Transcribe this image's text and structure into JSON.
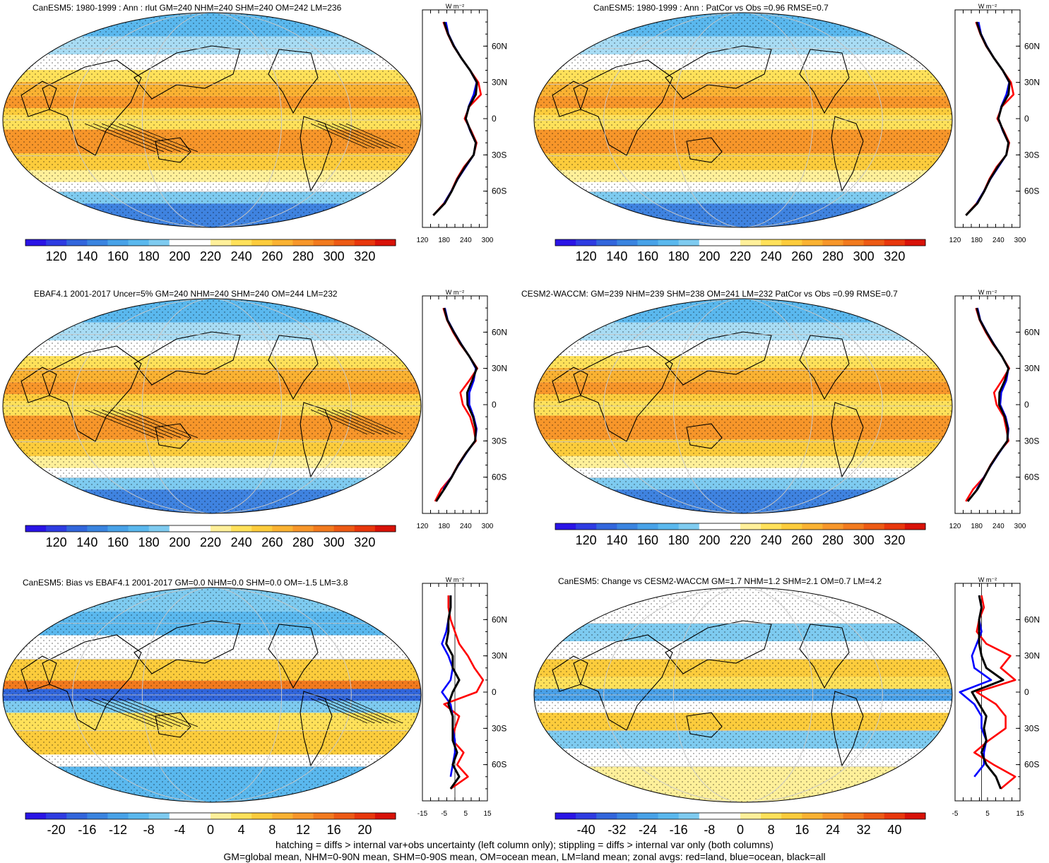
{
  "footer": {
    "line1": "hatching = diffs > internal var+obs uncertainty (left column only); stippling = diffs > internal var only (both columns)",
    "line2": "GM=global mean, NHM=0-90N mean, SHM=0-90S mean, OM=ocean mean, LM=land mean; zonal avgs: red=land, blue=ocean, black=all"
  },
  "zonal_unit": "W m⁻²",
  "lat_ticks": [
    "60N",
    "30N",
    "0",
    "30S",
    "60S"
  ],
  "colors": {
    "land": "#ff0000",
    "ocean": "#0000ff",
    "all": "#000000"
  },
  "panels": [
    {
      "id": "p1",
      "title": "CanESM5: 1980-1999 : Ann : rlut GM=240 NHM=240 SHM=240 OM=242 LM=236",
      "scale": "abs",
      "hatch": true,
      "cb_labels": [
        "120",
        "140",
        "160",
        "180",
        "200",
        "220",
        "240",
        "260",
        "280",
        "300",
        "320"
      ],
      "zonal_xticks": [
        "120",
        "180",
        "240",
        "300"
      ]
    },
    {
      "id": "p2",
      "title": "CanESM5: 1980-1999 : Ann : PatCor vs Obs =0.96 RMSE=0.7",
      "scale": "abs",
      "hatch": false,
      "cb_labels": [
        "120",
        "140",
        "160",
        "180",
        "200",
        "220",
        "240",
        "260",
        "280",
        "300",
        "320"
      ],
      "zonal_xticks": [
        "120",
        "180",
        "240",
        "300"
      ]
    },
    {
      "id": "p3",
      "title": "EBAF4.1 2001-2017 Uncer=5% GM=240 NHM=240 SHM=240 OM=244 LM=232",
      "scale": "abs",
      "hatch": true,
      "cb_labels": [
        "120",
        "140",
        "160",
        "180",
        "200",
        "220",
        "240",
        "260",
        "280",
        "300",
        "320"
      ],
      "zonal_xticks": [
        "120",
        "180",
        "240",
        "300"
      ]
    },
    {
      "id": "p4",
      "title": "CESM2-WACCM: GM=239 NHM=239 SHM=238 OM=241 LM=232 PatCor vs Obs =0.99 RMSE=0.7",
      "scale": "abs",
      "hatch": false,
      "cb_labels": [
        "120",
        "140",
        "160",
        "180",
        "200",
        "220",
        "240",
        "260",
        "280",
        "300",
        "320"
      ],
      "zonal_xticks": [
        "120",
        "180",
        "240",
        "300"
      ]
    },
    {
      "id": "p5",
      "title": "CanESM5: Bias vs EBAF4.1 2001-2017 GM=0.0 NHM=0.0 SHM=0.0 OM=-1.5 LM=3.8",
      "scale": "diff",
      "hatch": true,
      "cb_labels": [
        "-20",
        "-16",
        "-12",
        "-8",
        "-4",
        "0",
        "4",
        "8",
        "12",
        "16",
        "20"
      ],
      "zonal_xticks": [
        "-15",
        "-5",
        "5",
        "15"
      ]
    },
    {
      "id": "p6",
      "title": "CanESM5: Change vs CESM2-WACCM GM=1.7 NHM=1.2 SHM=2.1 OM=0.7 LM=4.2",
      "scale": "diff",
      "hatch": false,
      "cb_labels": [
        "-40",
        "-32",
        "-24",
        "-16",
        "-8",
        "0",
        "8",
        "16",
        "24",
        "32",
        "40"
      ],
      "zonal_xticks": [
        "-5",
        "5",
        "15"
      ]
    }
  ],
  "chart_data": [
    {
      "type": "line",
      "panel": "p1 zonal",
      "xlabel": "W m-2",
      "xlim": [
        120,
        300
      ],
      "ylim": [
        -90,
        90
      ],
      "x_lat": [
        -80,
        -70,
        -60,
        -50,
        -40,
        -30,
        -20,
        -10,
        0,
        10,
        20,
        30,
        40,
        50,
        60,
        70,
        80
      ],
      "series": [
        {
          "name": "land",
          "values": [
            150,
            180,
            200,
            215,
            235,
            262,
            270,
            255,
            237,
            250,
            282,
            275,
            252,
            228,
            206,
            190,
            178
          ]
        },
        {
          "name": "ocean",
          "values": [
            null,
            180,
            200,
            218,
            240,
            262,
            268,
            252,
            240,
            248,
            262,
            270,
            252,
            228,
            208,
            192,
            185
          ]
        },
        {
          "name": "all",
          "values": [
            150,
            182,
            201,
            217,
            238,
            262,
            268,
            253,
            240,
            249,
            268,
            271,
            252,
            228,
            207,
            191,
            180
          ]
        }
      ]
    },
    {
      "type": "line",
      "panel": "p2 zonal",
      "xlabel": "W m-2",
      "xlim": [
        120,
        300
      ],
      "ylim": [
        -90,
        90
      ],
      "x_lat": [
        -80,
        -70,
        -60,
        -50,
        -40,
        -30,
        -20,
        -10,
        0,
        10,
        20,
        30,
        40,
        50,
        60,
        70,
        80
      ],
      "series": [
        {
          "name": "land",
          "values": [
            150,
            180,
            200,
            215,
            235,
            262,
            270,
            255,
            237,
            250,
            282,
            275,
            252,
            228,
            206,
            190,
            178
          ]
        },
        {
          "name": "ocean",
          "values": [
            null,
            180,
            200,
            218,
            240,
            262,
            268,
            252,
            240,
            248,
            262,
            270,
            252,
            228,
            208,
            192,
            185
          ]
        },
        {
          "name": "all",
          "values": [
            150,
            182,
            201,
            217,
            238,
            262,
            268,
            253,
            240,
            249,
            268,
            271,
            252,
            228,
            207,
            191,
            180
          ]
        }
      ]
    },
    {
      "type": "line",
      "panel": "p3 zonal",
      "xlabel": "W m-2",
      "xlim": [
        120,
        300
      ],
      "ylim": [
        -90,
        90
      ],
      "x_lat": [
        -80,
        -70,
        -60,
        -50,
        -40,
        -30,
        -20,
        -10,
        0,
        10,
        20,
        30,
        40,
        50,
        60,
        70,
        80
      ],
      "series": [
        {
          "name": "land",
          "values": [
            155,
            172,
            200,
            218,
            240,
            268,
            262,
            252,
            232,
            225,
            250,
            272,
            250,
            225,
            205,
            188,
            178
          ]
        },
        {
          "name": "ocean",
          "values": [
            null,
            178,
            200,
            220,
            242,
            266,
            270,
            262,
            250,
            250,
            262,
            268,
            250,
            228,
            208,
            190,
            182
          ]
        },
        {
          "name": "all",
          "values": [
            158,
            180,
            201,
            219,
            241,
            266,
            268,
            260,
            245,
            244,
            258,
            270,
            250,
            227,
            207,
            189,
            180
          ]
        }
      ]
    },
    {
      "type": "line",
      "panel": "p4 zonal",
      "xlabel": "W m-2",
      "xlim": [
        120,
        300
      ],
      "ylim": [
        -90,
        90
      ],
      "x_lat": [
        -80,
        -70,
        -60,
        -50,
        -40,
        -30,
        -20,
        -10,
        0,
        10,
        20,
        30,
        40,
        50,
        60,
        70,
        80
      ],
      "series": [
        {
          "name": "land",
          "values": [
            150,
            170,
            200,
            218,
            240,
            268,
            262,
            255,
            235,
            228,
            250,
            270,
            250,
            225,
            205,
            188,
            178
          ]
        },
        {
          "name": "ocean",
          "values": [
            null,
            180,
            200,
            220,
            242,
            265,
            268,
            260,
            245,
            248,
            262,
            268,
            250,
            228,
            208,
            190,
            182
          ]
        },
        {
          "name": "all",
          "values": [
            155,
            182,
            201,
            219,
            241,
            265,
            266,
            258,
            242,
            243,
            258,
            268,
            250,
            227,
            207,
            189,
            180
          ]
        }
      ]
    },
    {
      "type": "line",
      "panel": "p5 zonal",
      "xlabel": "W m-2",
      "xlim": [
        -15,
        15
      ],
      "ylim": [
        -90,
        90
      ],
      "x_lat": [
        -80,
        -70,
        -60,
        -50,
        -40,
        -30,
        -20,
        -10,
        0,
        10,
        20,
        30,
        40,
        50,
        60,
        70,
        80
      ],
      "series": [
        {
          "name": "land",
          "values": [
            -2,
            6,
            1,
            4,
            -1,
            0,
            2,
            -5,
            10,
            13,
            9,
            6,
            2,
            0,
            -2,
            -3,
            -3
          ]
        },
        {
          "name": "ocean",
          "values": [
            null,
            -2,
            -1,
            0,
            0,
            -1,
            -1,
            -2,
            -6,
            -2,
            -1,
            -3,
            -6,
            -4,
            -3,
            -2,
            -2
          ]
        },
        {
          "name": "all",
          "values": [
            -2,
            2,
            -1,
            1,
            -1,
            -1,
            -1,
            -3,
            -1,
            2,
            -1,
            -1,
            -4,
            -3,
            -3,
            -2,
            -2
          ]
        }
      ]
    },
    {
      "type": "line",
      "panel": "p6 zonal",
      "xlabel": "W m-2",
      "ylim": [
        -90,
        90
      ],
      "x_lat": [
        -80,
        -70,
        -60,
        -50,
        -40,
        -30,
        -20,
        -10,
        0,
        10,
        20,
        30,
        40,
        50,
        60,
        70,
        80
      ],
      "series": [
        {
          "name": "land",
          "values": [
            8,
            14,
            5,
            -3,
            3,
            10,
            10,
            6,
            -2,
            14,
            8,
            12,
            2,
            -2,
            -1,
            1,
            0
          ]
        },
        {
          "name": "ocean",
          "values": [
            null,
            -3,
            1,
            1,
            2,
            0,
            0,
            -3,
            -9,
            4,
            -3,
            -4,
            -2,
            0,
            -1,
            0,
            -1
          ]
        },
        {
          "name": "all",
          "values": [
            8,
            6,
            2,
            0,
            2,
            1,
            2,
            -1,
            -4,
            9,
            2,
            0,
            -1,
            -1,
            -1,
            0,
            -1
          ]
        }
      ]
    }
  ]
}
